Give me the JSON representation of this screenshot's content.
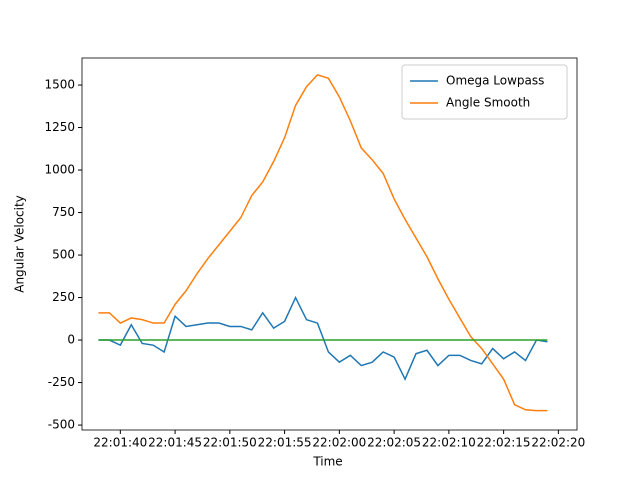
{
  "chart_data": {
    "type": "line",
    "x_label": "Time",
    "y_label": "Angular Velocity",
    "x": [
      "22:01:38",
      "22:01:39",
      "22:01:40",
      "22:01:41",
      "22:01:42",
      "22:01:43",
      "22:01:44",
      "22:01:45",
      "22:01:46",
      "22:01:47",
      "22:01:48",
      "22:01:49",
      "22:01:50",
      "22:01:51",
      "22:01:52",
      "22:01:53",
      "22:01:54",
      "22:01:55",
      "22:01:56",
      "22:01:57",
      "22:01:58",
      "22:01:59",
      "22:02:00",
      "22:02:01",
      "22:02:02",
      "22:02:03",
      "22:02:04",
      "22:02:05",
      "22:02:06",
      "22:02:07",
      "22:02:08",
      "22:02:09",
      "22:02:10",
      "22:02:11",
      "22:02:12",
      "22:02:13",
      "22:02:14",
      "22:02:15",
      "22:02:16",
      "22:02:17",
      "22:02:18",
      "22:02:19"
    ],
    "series": [
      {
        "name": "Omega Lowpass",
        "color": "#1f77b4",
        "values": [
          0,
          0,
          -30,
          90,
          -20,
          -30,
          -70,
          140,
          80,
          90,
          100,
          100,
          80,
          80,
          60,
          160,
          70,
          110,
          250,
          120,
          100,
          -70,
          -130,
          -90,
          -150,
          -130,
          -70,
          -100,
          -230,
          -80,
          -60,
          -150,
          -90,
          -90,
          -120,
          -140,
          -50,
          -110,
          -70,
          -120,
          0,
          -10
        ]
      },
      {
        "name": "Angle Smooth",
        "color": "#ff7f0e",
        "values": [
          160,
          160,
          100,
          130,
          120,
          100,
          100,
          210,
          290,
          390,
          480,
          560,
          640,
          720,
          850,
          930,
          1050,
          1190,
          1380,
          1490,
          1560,
          1540,
          1430,
          1290,
          1130,
          1060,
          980,
          830,
          710,
          600,
          490,
          360,
          240,
          130,
          20,
          -50,
          -140,
          -230,
          -380,
          -410,
          -415,
          -415
        ]
      },
      {
        "color": "#2ca02c",
        "values": [
          0,
          0,
          0,
          0,
          0,
          0,
          0,
          0,
          0,
          0,
          0,
          0,
          0,
          0,
          0,
          0,
          0,
          0,
          0,
          0,
          0,
          0,
          0,
          0,
          0,
          0,
          0,
          0,
          0,
          0,
          0,
          0,
          0,
          0,
          0,
          0,
          0,
          0,
          0,
          0,
          0,
          0
        ]
      }
    ],
    "xlim": [
      "22:01:36.5",
      "22:02:21.7"
    ],
    "xticks": [
      "22:01:40",
      "22:01:45",
      "22:01:50",
      "22:01:55",
      "22:02:00",
      "22:02:05",
      "22:02:10",
      "22:02:15",
      "22:02:20"
    ],
    "ylim": [
      -529,
      1659
    ],
    "yticks": [
      -500,
      -250,
      0,
      250,
      500,
      750,
      1000,
      1250,
      1500
    ],
    "legend": "upper right"
  }
}
